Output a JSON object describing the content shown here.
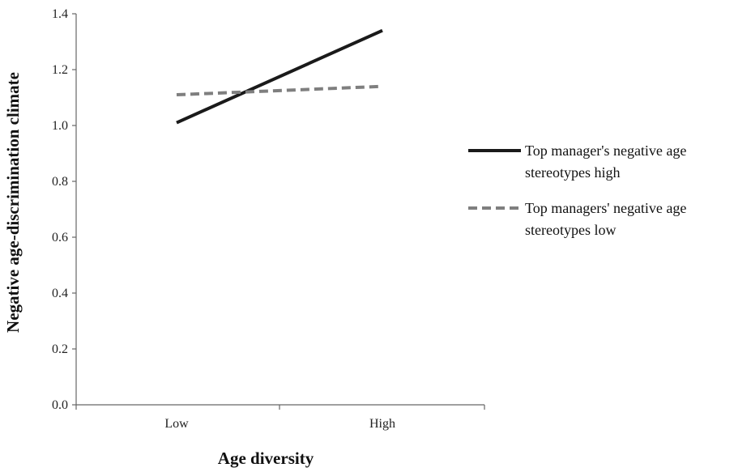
{
  "chart_data": {
    "type": "line",
    "categories": [
      "Low",
      "High"
    ],
    "xlabel": "Age diversity",
    "ylabel": "Negative age-discrimination climate",
    "ylim": [
      0.0,
      1.4
    ],
    "yticks": [
      "0.0",
      "0.2",
      "0.4",
      "0.6",
      "0.8",
      "1.0",
      "1.2",
      "1.4"
    ],
    "grid": false,
    "legend_position": "right",
    "series": [
      {
        "name": "Top manager's negative age stereotypes high",
        "name_lines": [
          "Top manager's negative age",
          "stereotypes high"
        ],
        "values": [
          1.01,
          1.34
        ],
        "color": "#1a1a1a",
        "style": "solid"
      },
      {
        "name": "Top managers' negative age stereotypes low",
        "name_lines": [
          "Top managers' negative age",
          "stereotypes low"
        ],
        "values": [
          1.11,
          1.14
        ],
        "color": "#7f7f7f",
        "style": "dashed"
      }
    ]
  }
}
